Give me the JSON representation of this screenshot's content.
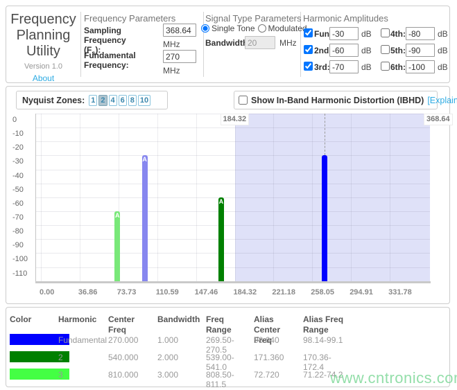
{
  "app": {
    "title": "Frequency Planning Utility",
    "version": "Version 1.0",
    "about": "About"
  },
  "frequency_parameters": {
    "header": "Frequency Parameters",
    "sampling_label_line1": "Sampling Frequency",
    "sampling_label_pre": "(F",
    "sampling_label_sub": "s",
    "sampling_label_post": "):",
    "sampling_value": "368.64",
    "sampling_unit": "MHz",
    "fundamental_label": "Fundamental Frequency:",
    "fundamental_value": "270",
    "fundamental_unit": "MHz"
  },
  "signal_type": {
    "header": "Signal Type Parameters",
    "options": [
      {
        "label": "Single Tone",
        "selected": true
      },
      {
        "label": "Modulated",
        "selected": false
      }
    ],
    "bandwidth_label": "Bandwidth:",
    "bandwidth_value": "20",
    "bandwidth_unit": "MHz",
    "bandwidth_disabled": true
  },
  "harmonics": {
    "header": "Harmonic Amplitudes",
    "unit": "dB",
    "rows": [
      {
        "key": "fund",
        "label": "Fund:",
        "checked": true,
        "value": "-30"
      },
      {
        "key": "2nd",
        "label": "2nd :",
        "checked": true,
        "value": "-60"
      },
      {
        "key": "3rd",
        "label": "3rd:",
        "checked": true,
        "value": "-70"
      },
      {
        "key": "4th",
        "label": "4th:",
        "checked": false,
        "value": "-80"
      },
      {
        "key": "5th",
        "label": "5th:",
        "checked": false,
        "value": "-90"
      },
      {
        "key": "6th",
        "label": "6th:",
        "checked": false,
        "value": "-100"
      }
    ]
  },
  "nyquist": {
    "label": "Nyquist Zones",
    "colon": ":",
    "buttons": [
      "1",
      "2",
      "4",
      "6",
      "8",
      "10"
    ],
    "selected": "2"
  },
  "ibhd": {
    "label": "Show In-Band Harmonic Distortion (IBHD)",
    "link": "[Explain IBHD]",
    "checked": false
  },
  "chart_data": {
    "type": "bar",
    "xlim": [
      0,
      368.64
    ],
    "ylim": [
      -110,
      0
    ],
    "grid": true,
    "x_ticks": [
      {
        "v": 0,
        "label": "0.00"
      },
      {
        "v": 36.86,
        "label": "36.86"
      },
      {
        "v": 73.73,
        "label": "73.73"
      },
      {
        "v": 110.59,
        "label": "110.59"
      },
      {
        "v": 147.46,
        "label": "147.46"
      },
      {
        "v": 184.32,
        "label": "184.32"
      },
      {
        "v": 221.18,
        "label": "221.18"
      },
      {
        "v": 258.05,
        "label": "258.05"
      },
      {
        "v": 294.91,
        "label": "294.91"
      },
      {
        "v": 331.78,
        "label": "331.78"
      }
    ],
    "y_ticks": [
      {
        "v": 0,
        "label": "0"
      },
      {
        "v": -10,
        "label": "-10"
      },
      {
        "v": -20,
        "label": "-20"
      },
      {
        "v": -30,
        "label": "-30"
      },
      {
        "v": -40,
        "label": "-40"
      },
      {
        "v": -50,
        "label": "-50"
      },
      {
        "v": -60,
        "label": "-60"
      },
      {
        "v": -70,
        "label": "-70"
      },
      {
        "v": -80,
        "label": "-80"
      },
      {
        "v": -90,
        "label": "-90"
      },
      {
        "v": -100,
        "label": "-100"
      },
      {
        "v": -110,
        "label": "-110"
      }
    ],
    "shaded_zone": {
      "start": 184.32,
      "end": 368.64,
      "start_label": "184.32",
      "end_label": "368.64",
      "fill": "#dfe1f8"
    },
    "bars": [
      {
        "name": "harmonic-3-alias",
        "freq": 72.72,
        "amplitude_db": -70,
        "color": "#79e879",
        "tag": "A"
      },
      {
        "name": "fundamental-alias",
        "freq": 98.64,
        "amplitude_db": -30,
        "color": "#8787ef",
        "tag": "A"
      },
      {
        "name": "harmonic-2-alias",
        "freq": 171.36,
        "amplitude_db": -60,
        "color": "#008000",
        "tag": "A"
      },
      {
        "name": "fundamental",
        "freq": 270.0,
        "amplitude_db": -30,
        "color": "#0000ff",
        "tag": "",
        "guide_line": true
      }
    ]
  },
  "table": {
    "headers": [
      "Color",
      "Harmonic",
      "Center Freq",
      "Bandwidth",
      "Freq Range",
      "Alias Center Freq",
      "Alias Freq Range"
    ],
    "rows": [
      {
        "color": "#0000ff",
        "harmonic": "Fundamental",
        "center_freq": "270.000",
        "bandwidth": "1.000",
        "freq_range": "269.50-270.5",
        "alias_center_freq": "98.640",
        "alias_freq_range": "98.14-99.1"
      },
      {
        "color": "#008000",
        "harmonic": "2",
        "center_freq": "540.000",
        "bandwidth": "2.000",
        "freq_range": "539.00-541.0",
        "alias_center_freq": "171.360",
        "alias_freq_range": "170.36-172.4"
      },
      {
        "color": "#44ff44",
        "harmonic": "3",
        "center_freq": "810.000",
        "bandwidth": "3.000",
        "freq_range": "808.50-811.5",
        "alias_center_freq": "72.720",
        "alias_freq_range": "71.22-74.2"
      }
    ]
  },
  "watermark": "www.cntronics.com",
  "colors": {
    "accent_link": "#2dabe3",
    "zone_button_text": "#3a87ad",
    "zone_shading": "#dfe1f8",
    "panel_border": "#cccccc"
  }
}
